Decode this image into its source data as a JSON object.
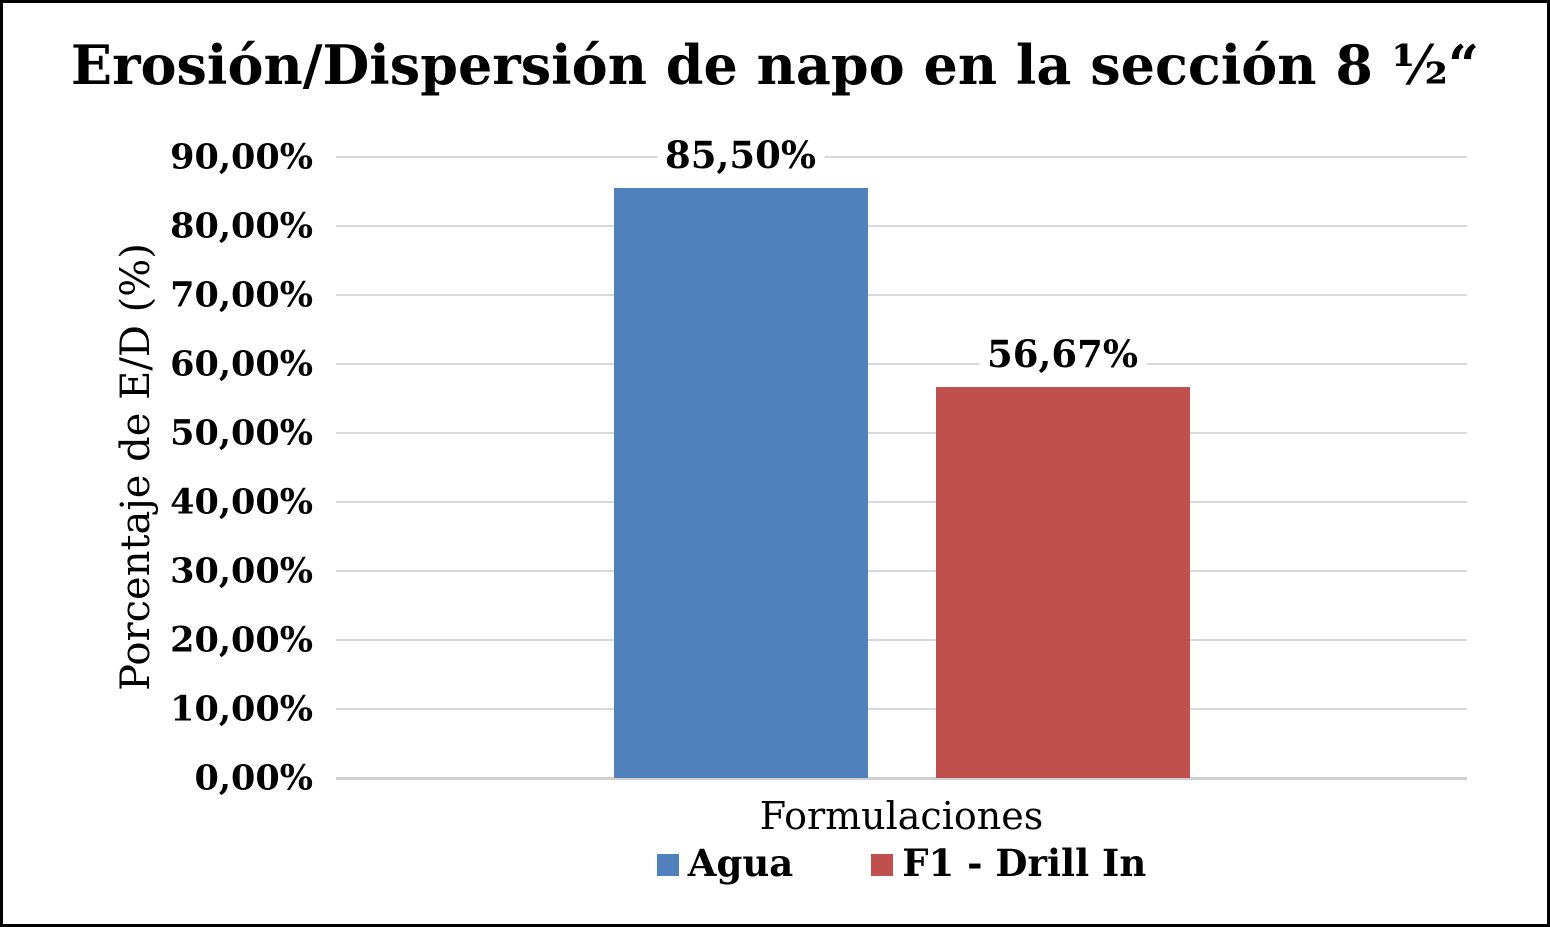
{
  "chart_data": {
    "type": "bar",
    "title": "Erosión/Dispersión de napo en la sección 8 ½“",
    "xlabel": "Formulaciones",
    "ylabel": "Porcentaje de E/D (%)",
    "categories": [
      "Formulaciones"
    ],
    "series": [
      {
        "name": "Agua",
        "value": 85.5,
        "label": "85,50%",
        "color": "#4F81BD"
      },
      {
        "name": "F1 - Drill In",
        "value": 56.67,
        "label": "56,67%",
        "color": "#C0504D"
      }
    ],
    "ylim": [
      0,
      90
    ],
    "yticks": [
      {
        "value": 0,
        "label": "0,00%"
      },
      {
        "value": 10,
        "label": "10,00%"
      },
      {
        "value": 20,
        "label": "20,00%"
      },
      {
        "value": 30,
        "label": "30,00%"
      },
      {
        "value": 40,
        "label": "40,00%"
      },
      {
        "value": 50,
        "label": "50,00%"
      },
      {
        "value": 60,
        "label": "60,00%"
      },
      {
        "value": 70,
        "label": "70,00%"
      },
      {
        "value": 80,
        "label": "80,00%"
      },
      {
        "value": 90,
        "label": "90,00%"
      }
    ],
    "grid": true,
    "legend_position": "bottom",
    "gridline_color": "#D9D9D9",
    "axis_line_color": "#D0CECE"
  }
}
